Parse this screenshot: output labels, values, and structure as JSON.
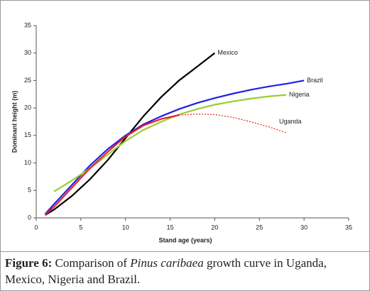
{
  "chart_data": {
    "type": "line",
    "xlabel": "Stand age (years)",
    "ylabel": "Dominant height (m)",
    "xlim": [
      0,
      35
    ],
    "ylim": [
      0,
      35
    ],
    "xticks": [
      0,
      5,
      10,
      15,
      20,
      25,
      30,
      35
    ],
    "yticks": [
      0,
      5,
      10,
      15,
      20,
      25,
      30,
      35
    ],
    "grid": false,
    "series": [
      {
        "name": "Mexico",
        "color": "#000000",
        "x": [
          1,
          2,
          4,
          6,
          8,
          10,
          12,
          14,
          16,
          18,
          20
        ],
        "values": [
          0.5,
          1.5,
          4,
          7,
          10.5,
          14.5,
          18.5,
          22,
          25,
          27.5,
          30
        ]
      },
      {
        "name": "Brazil",
        "color": "#1f1fe0",
        "x": [
          1,
          2,
          4,
          6,
          8,
          10,
          12,
          14,
          16,
          18,
          20,
          22,
          24,
          26,
          28,
          30
        ],
        "values": [
          0.7,
          2.5,
          6,
          9.5,
          12.5,
          15,
          17,
          18.5,
          19.8,
          20.9,
          21.8,
          22.6,
          23.3,
          23.9,
          24.4,
          25
        ]
      },
      {
        "name": "Nigeria",
        "color": "#9acd32",
        "x": [
          2,
          4,
          6,
          8,
          10,
          12,
          14,
          16,
          18,
          20,
          22,
          24,
          26,
          28
        ],
        "values": [
          4.8,
          6.8,
          9,
          11.5,
          14,
          16,
          17.5,
          18.8,
          19.8,
          20.6,
          21.2,
          21.7,
          22.1,
          22.4
        ]
      },
      {
        "name": "Uganda",
        "color": "#e8202a",
        "x": [
          1,
          2,
          4,
          6,
          8,
          10,
          12,
          14,
          16,
          18,
          20,
          22,
          24,
          26,
          28
        ],
        "values": [
          0.5,
          2,
          5.5,
          9,
          12,
          14.8,
          16.8,
          18,
          18.7,
          18.9,
          18.8,
          18.3,
          17.5,
          16.6,
          15.5
        ]
      }
    ]
  },
  "caption": {
    "label": "Figure 6:",
    "text1": " Comparison of ",
    "species": "Pinus caribaea",
    "text2": " growth curve in Uganda, Mexico, Nigeria and Brazil."
  }
}
